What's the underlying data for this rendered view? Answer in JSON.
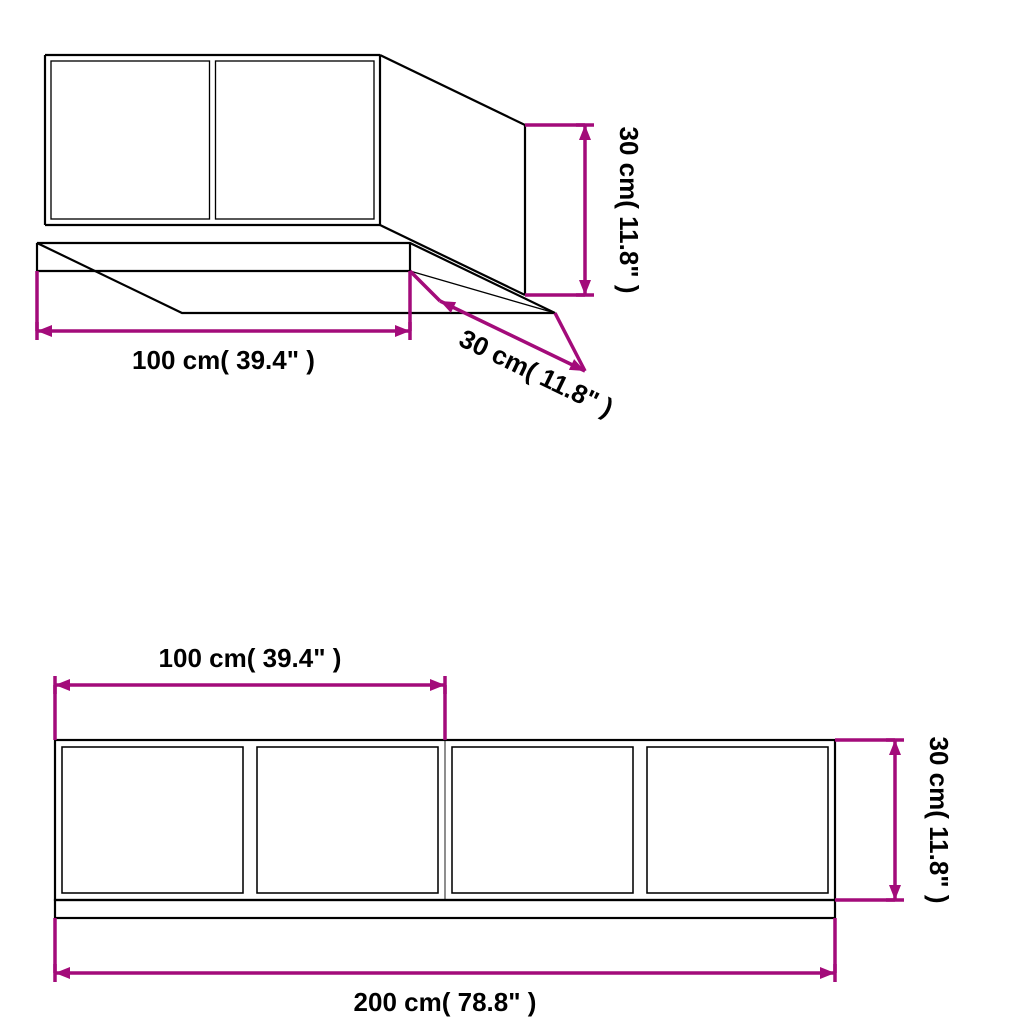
{
  "type": "dimension-diagram",
  "stroke_color": "#000000",
  "arrow_color": "#a30b7a",
  "background": "#ffffff",
  "product_line_width": 2.2,
  "arrow_line_width": 3.5,
  "arrow_head_len": 15,
  "arrow_head_w": 6,
  "font_size": 26,
  "top_unit": {
    "width_label": "100 cm( 39.4\" )",
    "depth_label": "30 cm( 11.8\"  )",
    "height_label": "30 cm( 11.8\" )"
  },
  "bottom_unit": {
    "section_label": "100 cm( 39.4\"  )",
    "total_label": "200 cm( 78.8\"  )",
    "height_label": "30 cm( 11.8\" )"
  }
}
